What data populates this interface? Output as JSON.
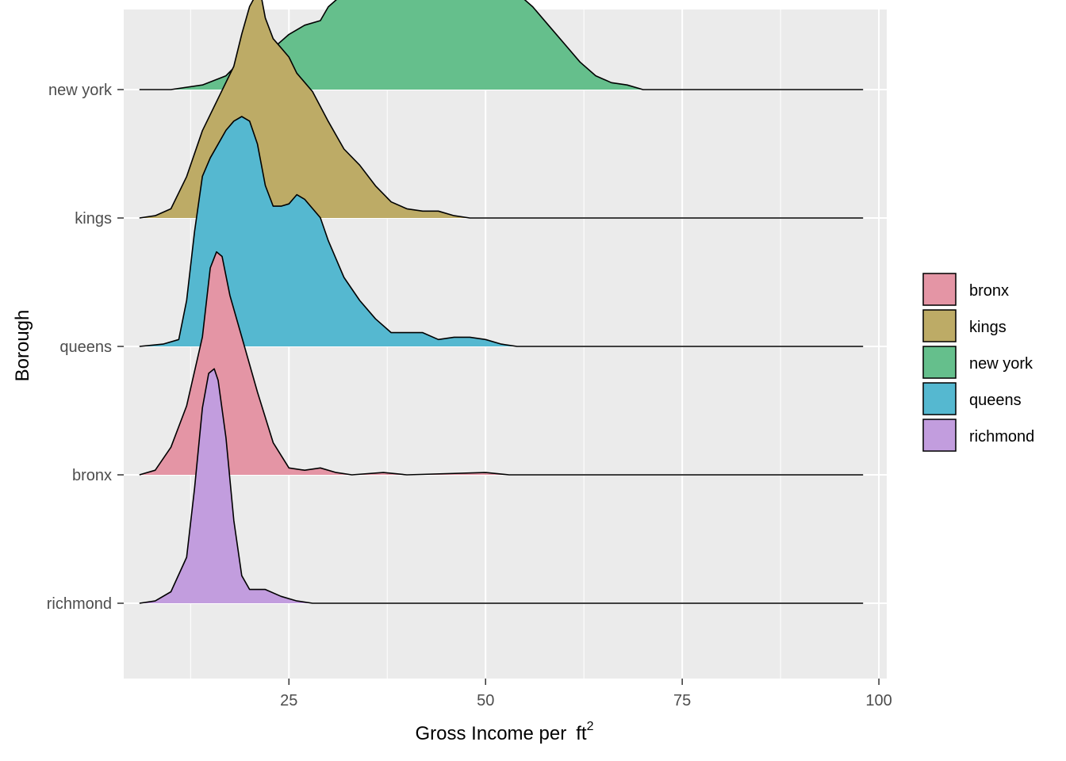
{
  "chart_data": {
    "type": "ridgeline",
    "xlabel": "Gross Income per",
    "xlabel_unit": "ft",
    "xlabel_sup": "2",
    "ylabel": "Borough",
    "xlim": [
      4,
      101
    ],
    "x_ticks": [
      25,
      50,
      75,
      100
    ],
    "grid": true,
    "legend_position": "right",
    "legend_title": "",
    "colors": {
      "panel_background": "#EBEBEB",
      "grid": "#FFFFFF",
      "outline": "#000000"
    },
    "series": [
      {
        "name": "richmond",
        "color": "#C29DDE",
        "points": [
          [
            6,
            0
          ],
          [
            8,
            0.01
          ],
          [
            10,
            0.05
          ],
          [
            12,
            0.2
          ],
          [
            13,
            0.5
          ],
          [
            14,
            0.85
          ],
          [
            14.8,
            1.0
          ],
          [
            15.5,
            1.02
          ],
          [
            16,
            0.97
          ],
          [
            17,
            0.72
          ],
          [
            18,
            0.36
          ],
          [
            19,
            0.12
          ],
          [
            20,
            0.06
          ],
          [
            22,
            0.06
          ],
          [
            24,
            0.03
          ],
          [
            26,
            0.01
          ],
          [
            28,
            0
          ],
          [
            98,
            0
          ]
        ]
      },
      {
        "name": "bronx",
        "color": "#E495A5",
        "points": [
          [
            6,
            0
          ],
          [
            8,
            0.02
          ],
          [
            10,
            0.12
          ],
          [
            12,
            0.3
          ],
          [
            14,
            0.6
          ],
          [
            15,
            0.9
          ],
          [
            15.8,
            0.97
          ],
          [
            16.5,
            0.95
          ],
          [
            17.5,
            0.78
          ],
          [
            19,
            0.6
          ],
          [
            21,
            0.36
          ],
          [
            23,
            0.14
          ],
          [
            25,
            0.03
          ],
          [
            27,
            0.02
          ],
          [
            29,
            0.03
          ],
          [
            31,
            0.01
          ],
          [
            33,
            0
          ],
          [
            37,
            0.01
          ],
          [
            40,
            0
          ],
          [
            50,
            0.01
          ],
          [
            53,
            0
          ],
          [
            98,
            0
          ]
        ]
      },
      {
        "name": "queens",
        "color": "#55B8D0",
        "points": [
          [
            6,
            0
          ],
          [
            9,
            0.01
          ],
          [
            11,
            0.03
          ],
          [
            12,
            0.2
          ],
          [
            13,
            0.5
          ],
          [
            14,
            0.74
          ],
          [
            15,
            0.82
          ],
          [
            16,
            0.88
          ],
          [
            17,
            0.94
          ],
          [
            18,
            0.98
          ],
          [
            19,
            1.0
          ],
          [
            20,
            0.98
          ],
          [
            21,
            0.88
          ],
          [
            22,
            0.7
          ],
          [
            23,
            0.61
          ],
          [
            24,
            0.61
          ],
          [
            25,
            0.62
          ],
          [
            26,
            0.66
          ],
          [
            27,
            0.64
          ],
          [
            28,
            0.6
          ],
          [
            29,
            0.56
          ],
          [
            30,
            0.46
          ],
          [
            31,
            0.38
          ],
          [
            32,
            0.3
          ],
          [
            34,
            0.2
          ],
          [
            36,
            0.12
          ],
          [
            38,
            0.06
          ],
          [
            40,
            0.06
          ],
          [
            42,
            0.06
          ],
          [
            44,
            0.03
          ],
          [
            46,
            0.04
          ],
          [
            48,
            0.04
          ],
          [
            50,
            0.03
          ],
          [
            52,
            0.01
          ],
          [
            54,
            0
          ],
          [
            98,
            0
          ]
        ]
      },
      {
        "name": "kings",
        "color": "#BDAB66",
        "points": [
          [
            6,
            0
          ],
          [
            8,
            0.01
          ],
          [
            10,
            0.04
          ],
          [
            12,
            0.18
          ],
          [
            14,
            0.38
          ],
          [
            16,
            0.52
          ],
          [
            18,
            0.66
          ],
          [
            19,
            0.8
          ],
          [
            20,
            0.92
          ],
          [
            20.8,
            0.97
          ],
          [
            21.5,
            0.96
          ],
          [
            22,
            0.87
          ],
          [
            23,
            0.78
          ],
          [
            24,
            0.74
          ],
          [
            25,
            0.7
          ],
          [
            26,
            0.63
          ],
          [
            28,
            0.55
          ],
          [
            30,
            0.42
          ],
          [
            32,
            0.3
          ],
          [
            34,
            0.23
          ],
          [
            36,
            0.14
          ],
          [
            38,
            0.07
          ],
          [
            40,
            0.04
          ],
          [
            42,
            0.03
          ],
          [
            44,
            0.03
          ],
          [
            46,
            0.01
          ],
          [
            48,
            0
          ],
          [
            98,
            0
          ]
        ]
      },
      {
        "name": "new york",
        "color": "#65BF8C",
        "points": [
          [
            6,
            0
          ],
          [
            10,
            0
          ],
          [
            14,
            0.02
          ],
          [
            17,
            0.06
          ],
          [
            19,
            0.13
          ],
          [
            21,
            0.14
          ],
          [
            23,
            0.18
          ],
          [
            25,
            0.24
          ],
          [
            27,
            0.28
          ],
          [
            29,
            0.3
          ],
          [
            30,
            0.36
          ],
          [
            32,
            0.42
          ],
          [
            34,
            0.45
          ],
          [
            36,
            0.54
          ],
          [
            38,
            0.66
          ],
          [
            39,
            0.69
          ],
          [
            40,
            0.7
          ],
          [
            41,
            0.7
          ],
          [
            42,
            0.72
          ],
          [
            43,
            0.75
          ],
          [
            44,
            0.74
          ],
          [
            45,
            0.71
          ],
          [
            46,
            0.7
          ],
          [
            48,
            0.64
          ],
          [
            50,
            0.56
          ],
          [
            52,
            0.48
          ],
          [
            54,
            0.42
          ],
          [
            56,
            0.36
          ],
          [
            58,
            0.28
          ],
          [
            60,
            0.2
          ],
          [
            62,
            0.12
          ],
          [
            64,
            0.06
          ],
          [
            66,
            0.03
          ],
          [
            68,
            0.02
          ],
          [
            70,
            0
          ],
          [
            98,
            0
          ]
        ]
      }
    ]
  }
}
